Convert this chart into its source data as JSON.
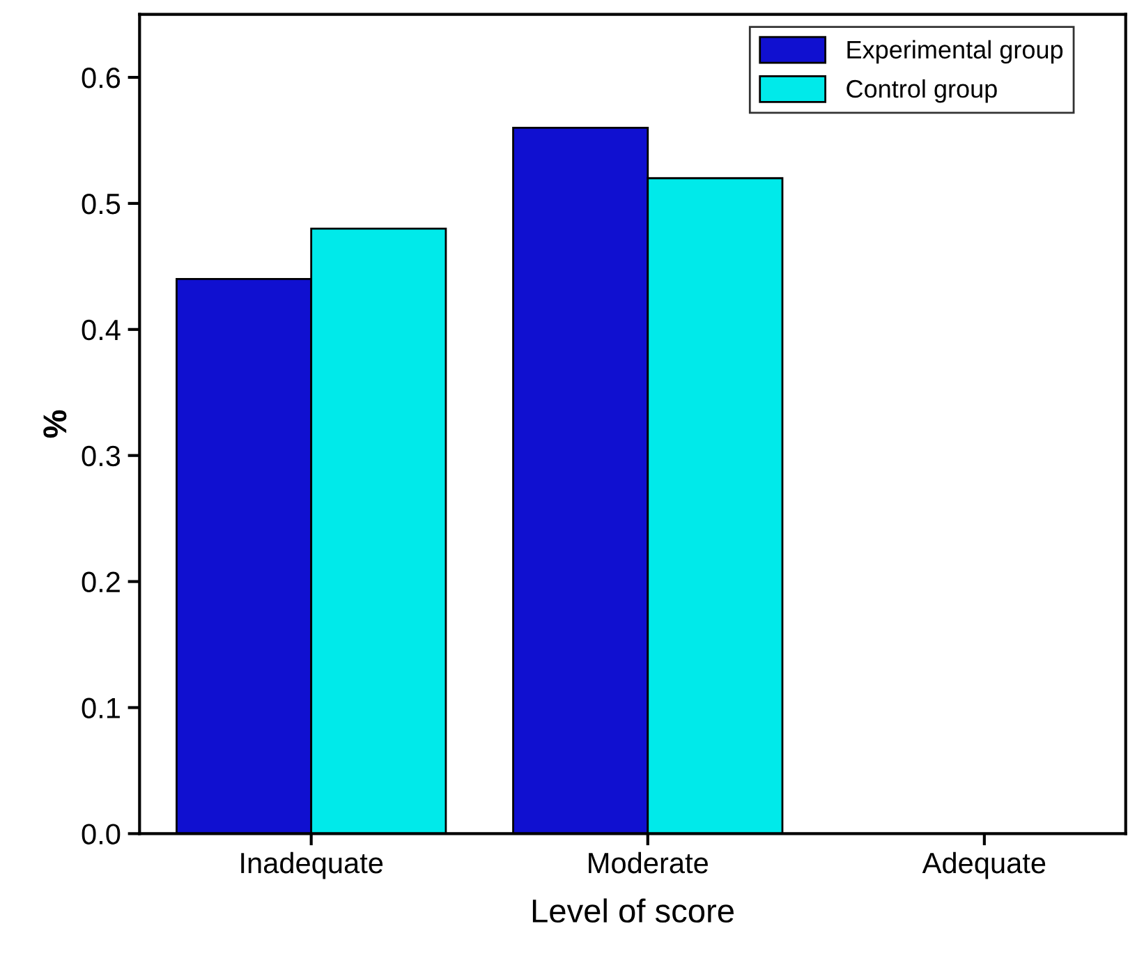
{
  "chart_data": {
    "type": "bar",
    "xlabel": "Level of score",
    "ylabel": "%",
    "categories": [
      "Inadequate",
      "Moderate",
      "Adequate"
    ],
    "series": [
      {
        "name": "Experimental group",
        "color": "#1010d0",
        "values": [
          0.44,
          0.56,
          0
        ]
      },
      {
        "name": "Control group",
        "color": "#00eaea",
        "values": [
          0.48,
          0.52,
          0
        ]
      }
    ],
    "ylim": [
      0,
      0.65
    ],
    "yticks": [
      {
        "value": 0,
        "label": "0.0"
      },
      0.1,
      0.2,
      0.3,
      0.4,
      0.5,
      0.6
    ],
    "grid": false,
    "legend": "top right"
  }
}
